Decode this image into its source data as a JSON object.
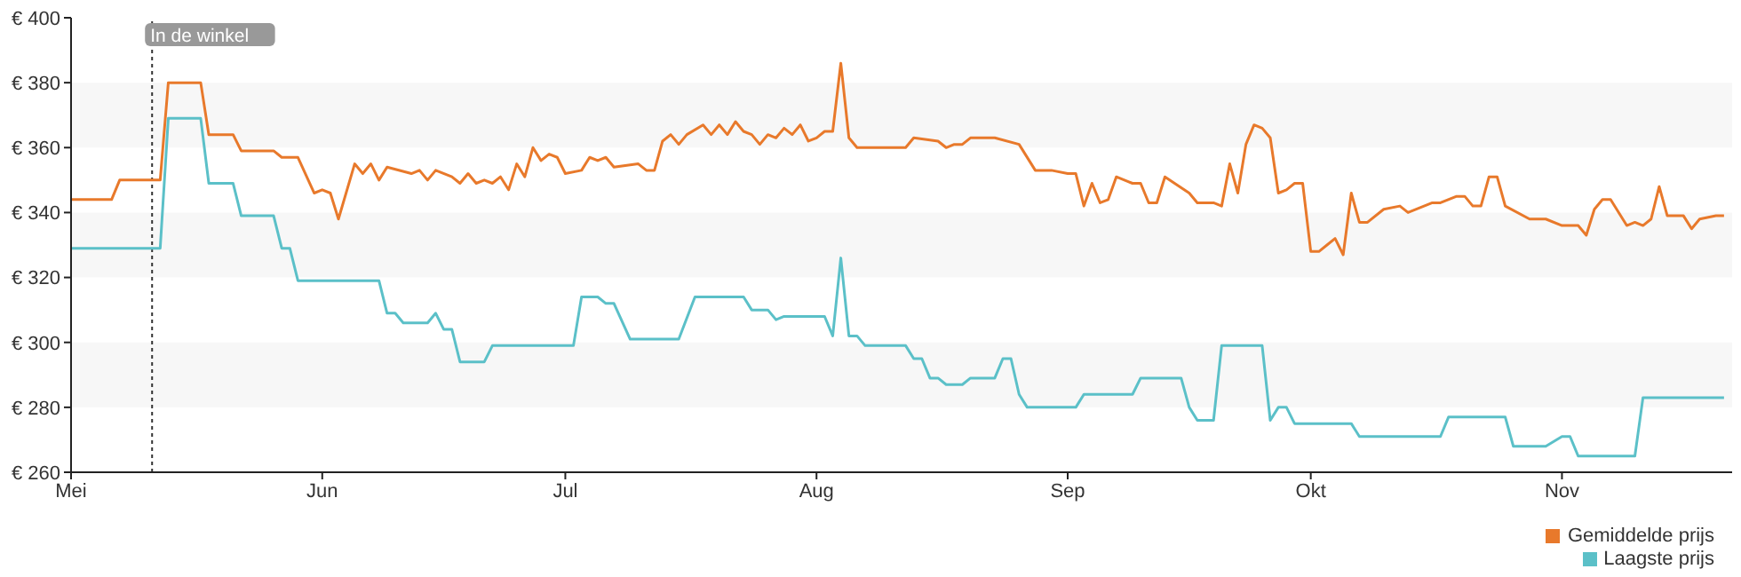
{
  "chart_data": {
    "type": "line",
    "xlim": [
      "--05-01",
      "--11-22"
    ],
    "xticks": [
      {
        "value": "--05-01",
        "label": "Mei"
      },
      {
        "value": "--06-01",
        "label": "Jun"
      },
      {
        "value": "--07-01",
        "label": "Jul"
      },
      {
        "value": "--08-01",
        "label": "Aug"
      },
      {
        "value": "--09-01",
        "label": "Sep"
      },
      {
        "value": "--10-01",
        "label": "Okt"
      },
      {
        "value": "--11-01",
        "label": "Nov"
      }
    ],
    "ylim": [
      260,
      400
    ],
    "yticks": [
      {
        "value": 260,
        "label": "€ 260"
      },
      {
        "value": 280,
        "label": "€ 280"
      },
      {
        "value": 300,
        "label": "€ 300"
      },
      {
        "value": 320,
        "label": "€ 320"
      },
      {
        "value": 340,
        "label": "€ 340"
      },
      {
        "value": 360,
        "label": "€ 360"
      },
      {
        "value": 380,
        "label": "€ 380"
      },
      {
        "value": 400,
        "label": "€ 400"
      }
    ],
    "bands": [
      {
        "axis": "y",
        "from": 280,
        "to": 300,
        "color": "#f7f7f7"
      },
      {
        "axis": "y",
        "from": 320,
        "to": 340,
        "color": "#f7f7f7"
      },
      {
        "axis": "y",
        "from": 360,
        "to": 380,
        "color": "#f7f7f7"
      }
    ],
    "legend": "bottom right",
    "marker": "none",
    "line_style": "solid",
    "ref_lines": [
      {
        "axis": "x",
        "value": "--05-11",
        "label": "In de winkel",
        "color": "#333333",
        "line_style": "dotted"
      }
    ],
    "series": [
      {
        "name": "Gemiddelde prijs",
        "color": "#e8792b",
        "x": [
          "--05-01",
          "--05-06",
          "--05-07",
          "--05-12",
          "--05-13",
          "--05-17",
          "--05-18",
          "--05-21",
          "--05-22",
          "--05-26",
          "--05-27",
          "--05-29",
          "--05-31",
          "--06-01",
          "--06-02",
          "--06-03",
          "--06-05",
          "--06-06",
          "--06-07",
          "--06-08",
          "--06-09",
          "--06-12",
          "--06-13",
          "--06-14",
          "--06-15",
          "--06-17",
          "--06-18",
          "--06-19",
          "--06-20",
          "--06-21",
          "--06-22",
          "--06-23",
          "--06-24",
          "--06-25",
          "--06-26",
          "--06-27",
          "--06-28",
          "--06-29",
          "--06-30",
          "--07-01",
          "--07-03",
          "--07-04",
          "--07-05",
          "--07-06",
          "--07-07",
          "--07-10",
          "--07-11",
          "--07-12",
          "--07-13",
          "--07-14",
          "--07-15",
          "--07-16",
          "--07-18",
          "--07-19",
          "--07-20",
          "--07-21",
          "--07-22",
          "--07-23",
          "--07-24",
          "--07-25",
          "--07-26",
          "--07-27",
          "--07-28",
          "--07-29",
          "--07-30",
          "--07-31",
          "--08-01",
          "--08-02",
          "--08-03",
          "--08-04",
          "--08-05",
          "--08-06",
          "--08-12",
          "--08-13",
          "--08-16",
          "--08-17",
          "--08-18",
          "--08-19",
          "--08-20",
          "--08-23",
          "--08-26",
          "--08-28",
          "--08-30",
          "--09-01",
          "--09-02",
          "--09-03",
          "--09-04",
          "--09-05",
          "--09-06",
          "--09-07",
          "--09-08",
          "--09-09",
          "--09-10",
          "--09-11",
          "--09-12",
          "--09-13",
          "--09-16",
          "--09-17",
          "--09-19",
          "--09-20",
          "--09-21",
          "--09-22",
          "--09-23",
          "--09-24",
          "--09-25",
          "--09-26",
          "--09-27",
          "--09-28",
          "--09-29",
          "--09-30",
          "--10-01",
          "--10-02",
          "--10-03",
          "--10-04",
          "--10-05",
          "--10-06",
          "--10-07",
          "--10-08",
          "--10-10",
          "--10-12",
          "--10-13",
          "--10-16",
          "--10-17",
          "--10-19",
          "--10-20",
          "--10-21",
          "--10-22",
          "--10-23",
          "--10-24",
          "--10-25",
          "--10-28",
          "--10-30",
          "--11-01",
          "--11-03",
          "--11-04",
          "--11-05",
          "--11-06",
          "--11-07",
          "--11-09",
          "--11-10",
          "--11-11",
          "--11-12",
          "--11-13",
          "--11-14",
          "--11-16",
          "--11-17",
          "--11-18",
          "--11-20",
          "--11-21"
        ],
        "values": [
          344,
          344,
          350,
          350,
          380,
          380,
          364,
          364,
          359,
          359,
          357,
          357,
          346,
          347,
          346,
          338,
          355,
          352,
          355,
          350,
          354,
          352,
          353,
          350,
          353,
          351,
          349,
          352,
          349,
          350,
          349,
          351,
          347,
          355,
          351,
          360,
          356,
          358,
          357,
          352,
          353,
          357,
          356,
          357,
          354,
          355,
          353,
          353,
          362,
          364,
          361,
          364,
          367,
          364,
          367,
          364,
          368,
          365,
          364,
          361,
          364,
          363,
          366,
          364,
          367,
          362,
          363,
          365,
          365,
          386,
          363,
          360,
          360,
          363,
          362,
          360,
          361,
          361,
          363,
          363,
          361,
          353,
          353,
          352,
          352,
          342,
          349,
          343,
          344,
          351,
          350,
          349,
          349,
          343,
          343,
          351,
          346,
          343,
          343,
          342,
          355,
          346,
          361,
          367,
          366,
          363,
          346,
          347,
          349,
          349,
          328,
          328,
          330,
          332,
          327,
          346,
          337,
          337,
          341,
          342,
          340,
          343,
          343,
          345,
          345,
          342,
          342,
          351,
          351,
          342,
          338,
          338,
          336,
          336,
          333,
          341,
          344,
          344,
          336,
          337,
          336,
          338,
          348,
          339,
          339,
          335,
          338,
          339,
          339
        ]
      },
      {
        "name": "Laagste prijs",
        "color": "#5bc0c8",
        "x": [
          "--05-01",
          "--05-12",
          "--05-13",
          "--05-17",
          "--05-18",
          "--05-21",
          "--05-22",
          "--05-26",
          "--05-27",
          "--05-28",
          "--05-29",
          "--06-08",
          "--06-09",
          "--06-10",
          "--06-11",
          "--06-14",
          "--06-15",
          "--06-16",
          "--06-17",
          "--06-18",
          "--06-21",
          "--06-22",
          "--07-02",
          "--07-03",
          "--07-05",
          "--07-06",
          "--07-07",
          "--07-09",
          "--07-15",
          "--07-17",
          "--07-23",
          "--07-24",
          "--07-26",
          "--07-27",
          "--07-28",
          "--08-02",
          "--08-03",
          "--08-04",
          "--08-05",
          "--08-06",
          "--08-07",
          "--08-12",
          "--08-13",
          "--08-14",
          "--08-15",
          "--08-16",
          "--08-17",
          "--08-19",
          "--08-20",
          "--08-23",
          "--08-24",
          "--08-25",
          "--08-26",
          "--08-27",
          "--09-02",
          "--09-03",
          "--09-09",
          "--09-10",
          "--09-15",
          "--09-16",
          "--09-17",
          "--09-19",
          "--09-20",
          "--09-25",
          "--09-26",
          "--09-27",
          "--09-28",
          "--09-29",
          "--10-06",
          "--10-07",
          "--10-17",
          "--10-18",
          "--10-25",
          "--10-26",
          "--10-30",
          "--11-01",
          "--11-02",
          "--11-03",
          "--11-10",
          "--11-11",
          "--11-21"
        ],
        "values": [
          329,
          329,
          369,
          369,
          349,
          349,
          339,
          339,
          329,
          329,
          319,
          319,
          309,
          309,
          306,
          306,
          309,
          304,
          304,
          294,
          294,
          299,
          299,
          314,
          314,
          312,
          312,
          301,
          301,
          314,
          314,
          310,
          310,
          307,
          308,
          308,
          302,
          326,
          302,
          302,
          299,
          299,
          295,
          295,
          289,
          289,
          287,
          287,
          289,
          289,
          295,
          295,
          284,
          280,
          280,
          284,
          284,
          289,
          289,
          280,
          276,
          276,
          299,
          299,
          276,
          280,
          280,
          275,
          275,
          271,
          271,
          277,
          277,
          268,
          268,
          271,
          271,
          265,
          265,
          283,
          283
        ]
      }
    ]
  }
}
